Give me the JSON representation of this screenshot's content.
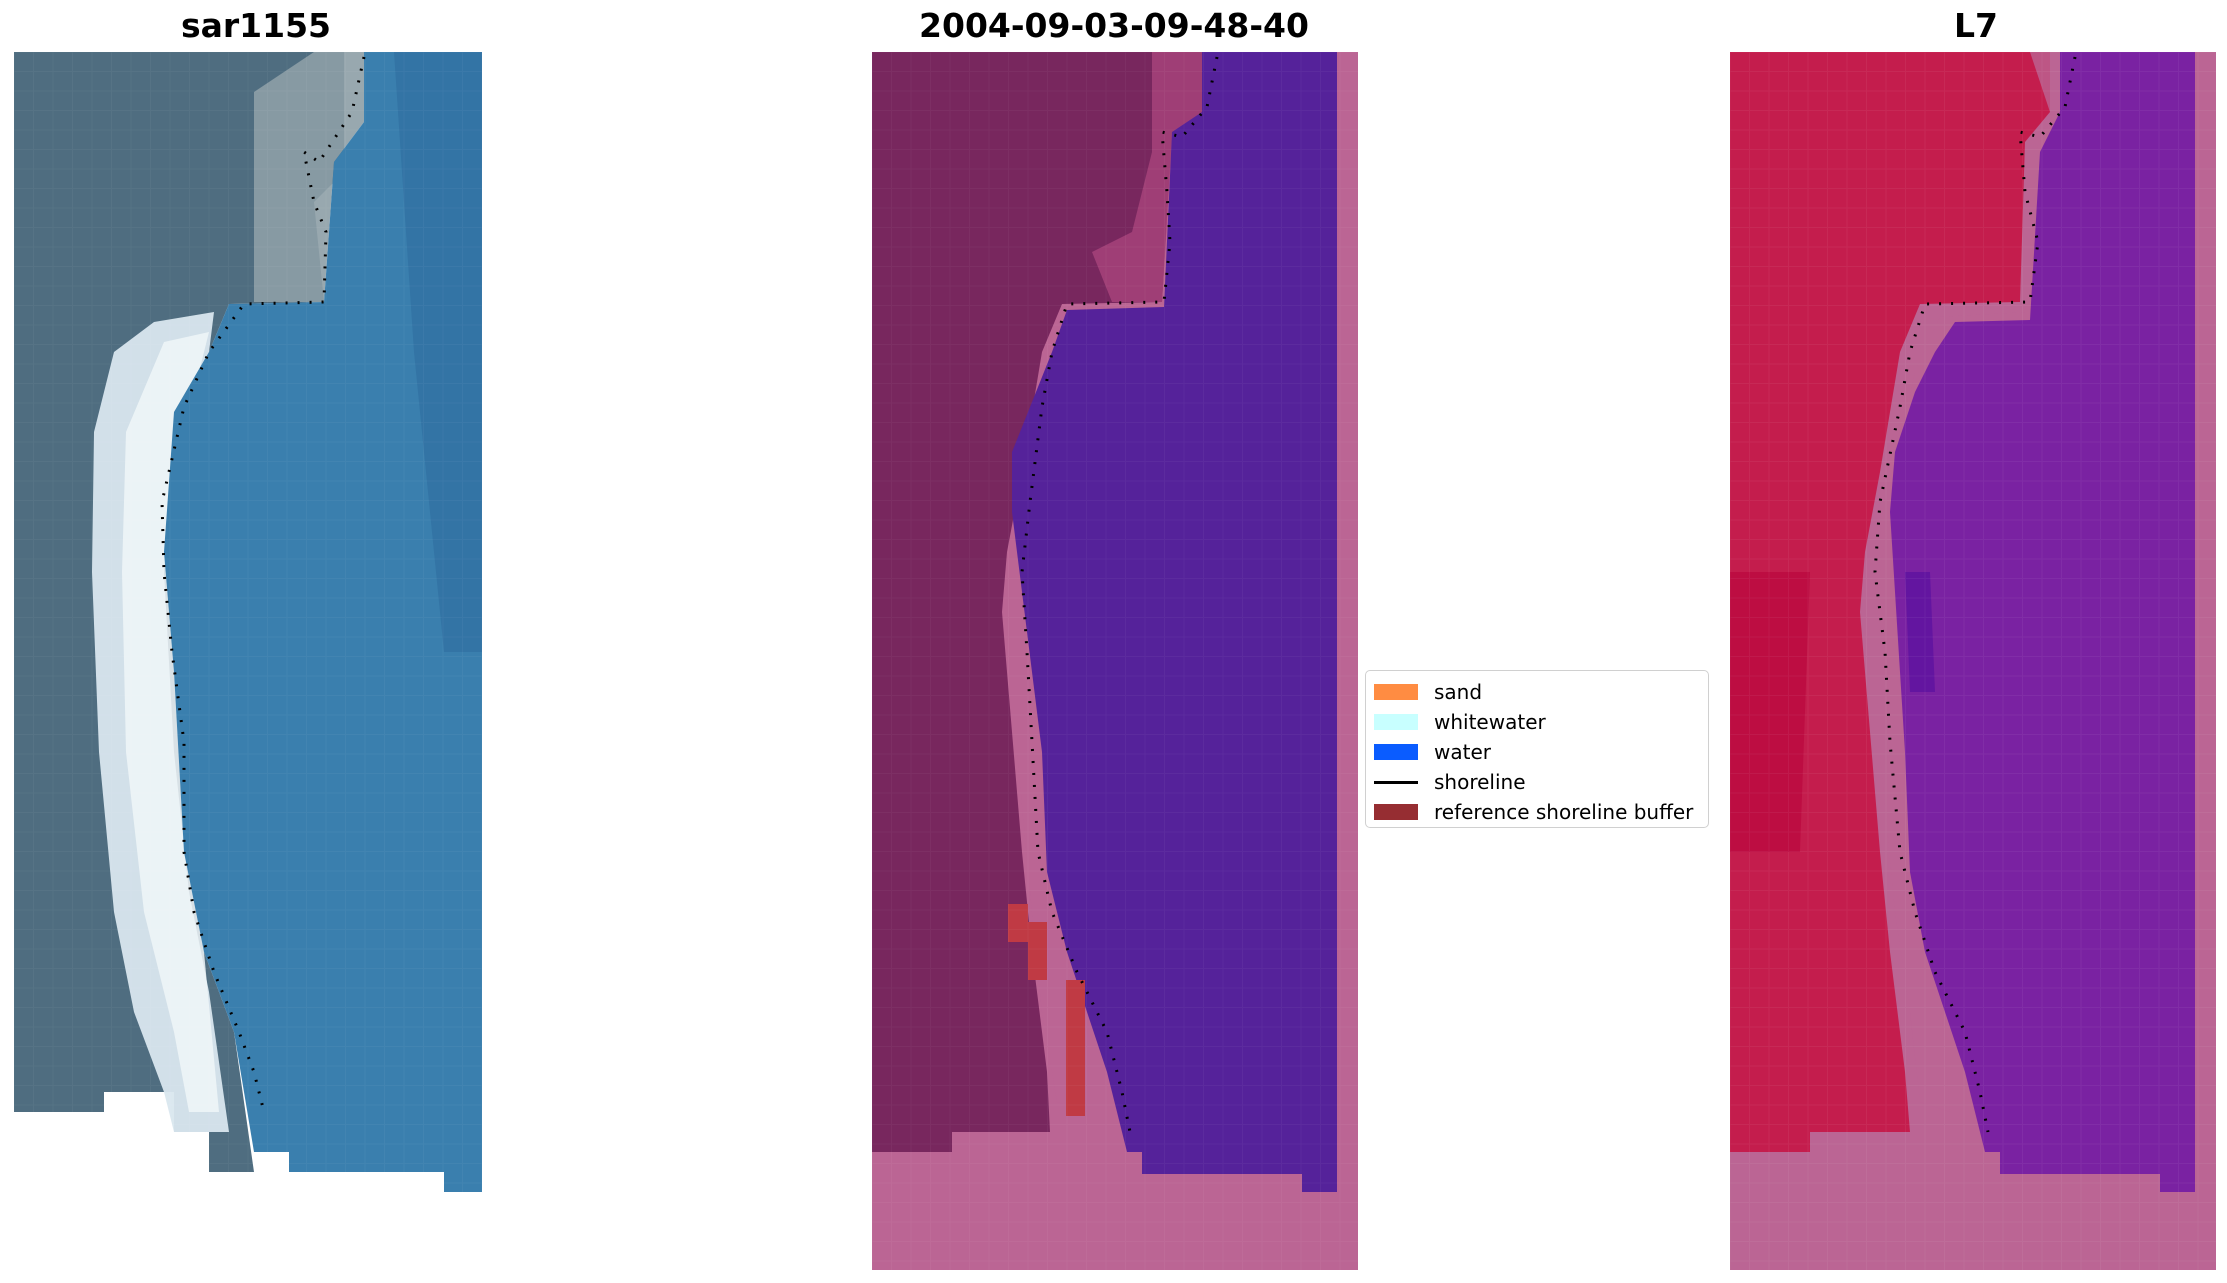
{
  "panels": [
    {
      "title": "sar1155",
      "image": "RGB satellite image"
    },
    {
      "title": "2004-09-03-09-48-40",
      "image": "classified image"
    },
    {
      "title": "L7",
      "image": "MNDWI image"
    }
  ],
  "legend": {
    "items": [
      {
        "label": "sand",
        "color": "#ff8c42",
        "kind": "patch"
      },
      {
        "label": "whitewater",
        "color": "#c8ffff",
        "kind": "patch"
      },
      {
        "label": "water",
        "color": "#0a5cff",
        "kind": "patch"
      },
      {
        "label": "shoreline",
        "color": "#000000",
        "kind": "line"
      },
      {
        "label": "reference shoreline buffer",
        "color": "#962d32",
        "kind": "patch"
      }
    ]
  },
  "colors": {
    "rgb_land": "#4f6d80",
    "rgb_water": "#3a7fae",
    "rgb_whitewater": "#e8f2f4",
    "class_land": "#78275e",
    "class_water": "#55229a",
    "class_buffer": "#bb6594",
    "class_sand_patch": "#c03a44",
    "mndwi_land": "#c41d4d",
    "mndwi_water": "#7a22a2",
    "mndwi_buffer": "#bb6594"
  }
}
